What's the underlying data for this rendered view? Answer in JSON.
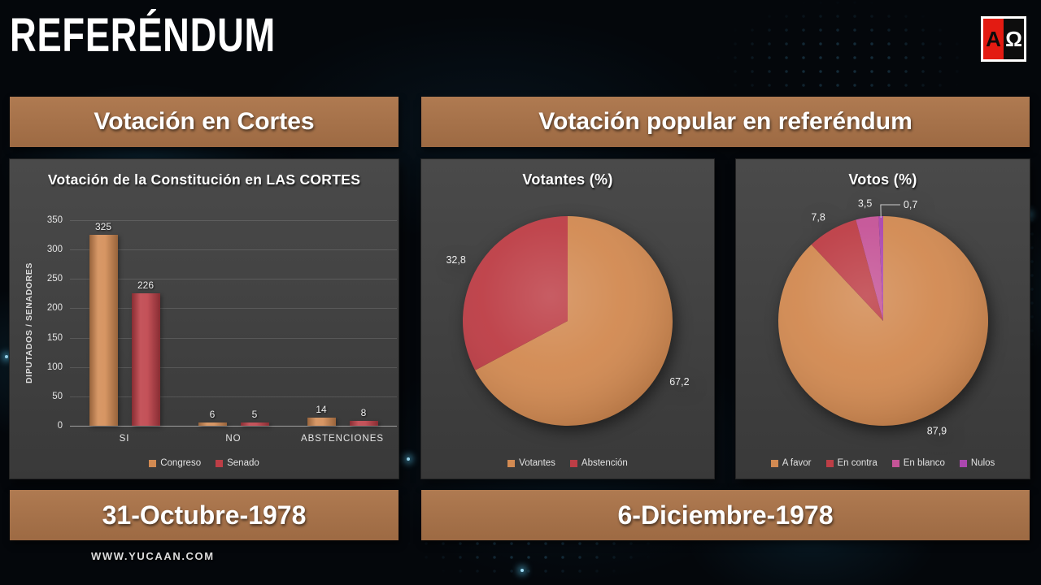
{
  "slide": {
    "title": "REFERÉNDUM",
    "website": "WWW.YUCAAN.COM"
  },
  "logo": {
    "alpha": "A",
    "omega": "Ω"
  },
  "theme": {
    "copper": "#a8744c",
    "orange": "#d28a52",
    "red": "#bd3e46",
    "pink": "#c55497",
    "purple": "#ab47ae",
    "panel_gray": "#424242",
    "logo_red": "#e31b12"
  },
  "left_section": {
    "header": "Votación en Cortes",
    "date": "31-Octubre-1978"
  },
  "right_section": {
    "header": "Votación popular en referéndum",
    "date": "6-Diciembre-1978"
  },
  "chart_data": [
    {
      "type": "bar",
      "title": "Votación de la Constitución en LAS CORTES",
      "xlabel": "",
      "ylabel": "DIPUTADOS / SENADORES",
      "categories": [
        "SI",
        "NO",
        "ABSTENCIONES"
      ],
      "series": [
        {
          "name": "Congreso",
          "color": "#d28a52",
          "values": [
            325,
            6,
            14
          ]
        },
        {
          "name": "Senado",
          "color": "#bd3e46",
          "values": [
            226,
            5,
            8
          ]
        }
      ],
      "ylim": [
        0,
        350
      ],
      "ytick_step": 50,
      "grid": true,
      "legend_position": "bottom"
    },
    {
      "type": "pie",
      "title": "Votantes (%)",
      "labels": [
        "Votantes",
        "Abstención"
      ],
      "values": [
        67.2,
        32.8
      ],
      "colors": [
        "#d28a52",
        "#bd3e46"
      ],
      "legend_position": "bottom",
      "decimal_separator": ","
    },
    {
      "type": "pie",
      "title": "Votos (%)",
      "labels": [
        "A favor",
        "En contra",
        "En blanco",
        "Nulos"
      ],
      "values": [
        87.9,
        7.8,
        3.5,
        0.7
      ],
      "colors": [
        "#d28a52",
        "#bd3e46",
        "#c55497",
        "#ab47ae"
      ],
      "legend_position": "bottom",
      "decimal_separator": ","
    }
  ]
}
